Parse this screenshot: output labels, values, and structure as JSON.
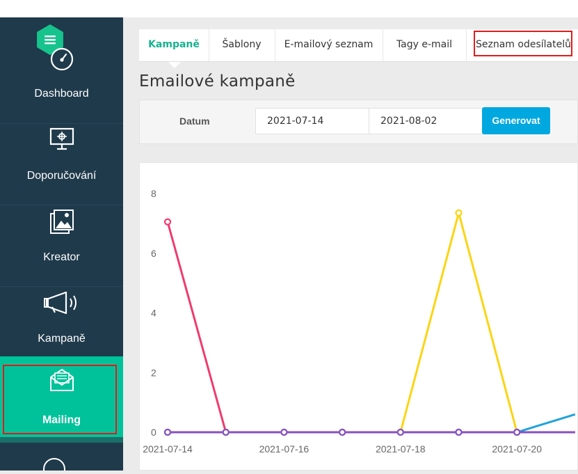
{
  "sidebar": {
    "items": [
      {
        "label": "Dashboard",
        "icon": "gauge-icon"
      },
      {
        "label": "Doporučování",
        "icon": "presentation-icon"
      },
      {
        "label": "Kreator",
        "icon": "image-gallery-icon"
      },
      {
        "label": "Kampaně",
        "icon": "megaphone-icon"
      },
      {
        "label": "Mailing",
        "icon": "open-envelope-icon"
      }
    ],
    "active": "Mailing"
  },
  "tabs": [
    {
      "label": "Kampaně",
      "active": true
    },
    {
      "label": "Šablony",
      "active": false
    },
    {
      "label": "E-mailový seznam",
      "active": false
    },
    {
      "label": "Tagy e-mail",
      "active": false
    },
    {
      "label": "Seznam odesílatelů",
      "active": false
    }
  ],
  "page_title": "Emailové kampaně",
  "filter": {
    "label": "Datum",
    "date_from": "2021-07-14",
    "date_to": "2021-08-02",
    "generate_label": "Generovat"
  },
  "colors": {
    "sidebar_bg": "#1f3a4b",
    "active_green": "#00c29a",
    "button_blue": "#00a8e0",
    "highlight_red": "#e21a1a"
  },
  "chart_data": {
    "type": "line",
    "x": [
      "2021-07-14",
      "2021-07-15",
      "2021-07-16",
      "2021-07-17",
      "2021-07-18",
      "2021-07-19",
      "2021-07-20",
      "2021-07-21"
    ],
    "x_tick_labels": [
      "2021-07-14",
      "2021-07-16",
      "2021-07-18",
      "2021-07-20"
    ],
    "y_ticks": [
      0,
      2,
      4,
      6,
      8
    ],
    "ylim": [
      0,
      8
    ],
    "grid": false,
    "series": [
      {
        "color": "#f03a6e",
        "values": [
          7.05,
          0,
          0,
          0,
          0,
          0,
          0,
          0
        ]
      },
      {
        "color": "#fbd512",
        "values": [
          0,
          0,
          0,
          0,
          0,
          7.35,
          0,
          0
        ]
      },
      {
        "color": "#1fa3dc",
        "values": [
          0,
          0,
          0,
          0,
          0,
          0,
          0,
          0.6
        ]
      },
      {
        "color": "#8a4fbf",
        "values": [
          0,
          0,
          0,
          0,
          0,
          0,
          0,
          0
        ]
      }
    ]
  }
}
